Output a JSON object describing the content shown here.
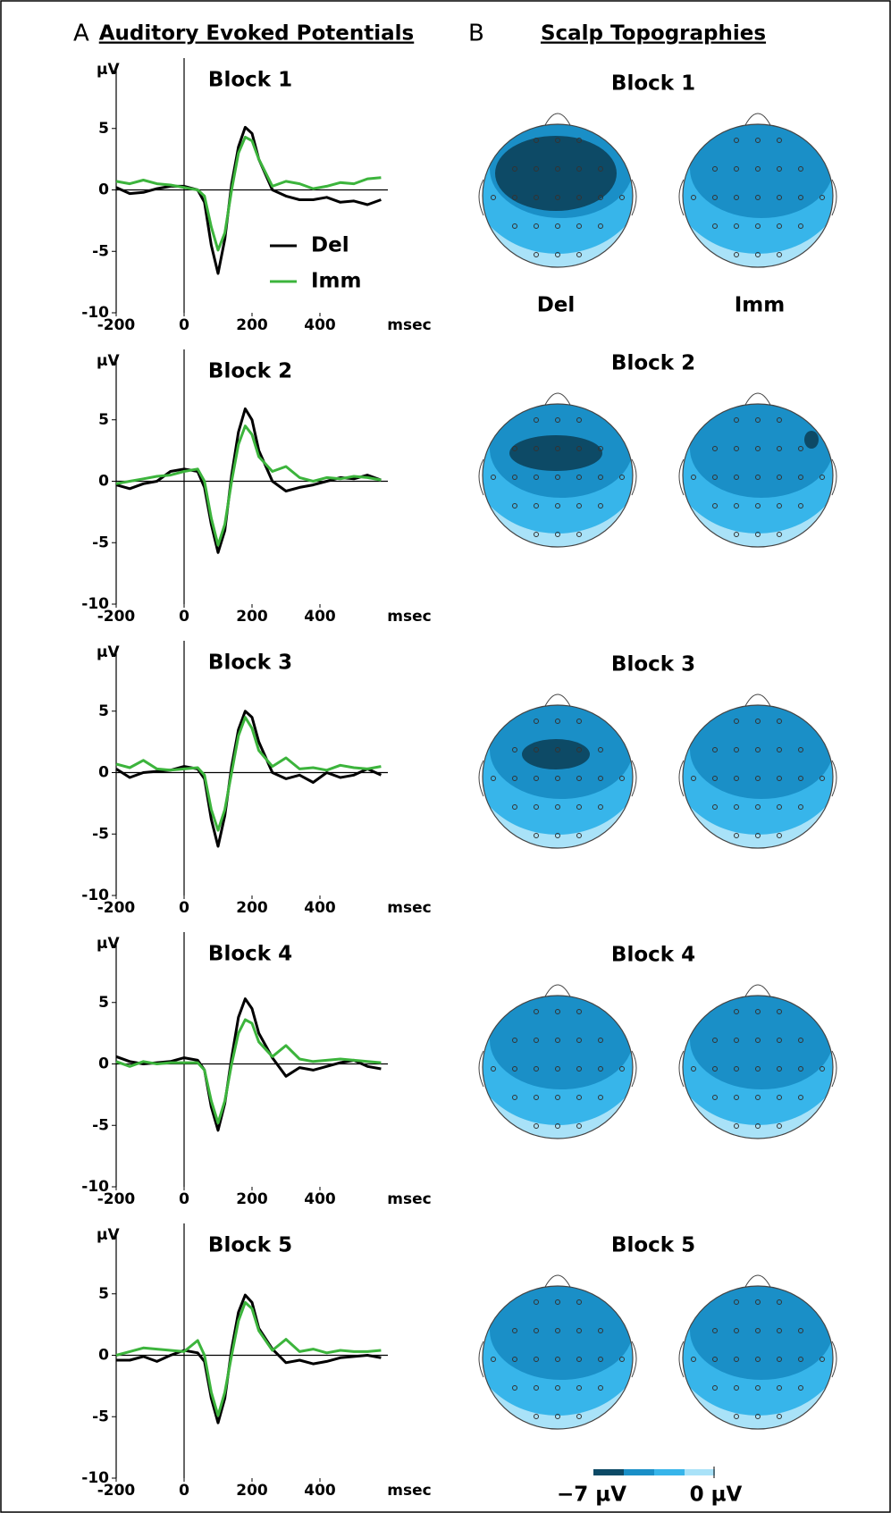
{
  "panels": {
    "a_letter": "A",
    "a_title": "Auditory Evoked Potentials",
    "b_letter": "B",
    "b_title": "Scalp Topographies"
  },
  "chart_data": [
    {
      "type": "line",
      "title": "Block 1",
      "y_label": "µV",
      "x_unit": "msec",
      "legend": true,
      "x": [
        -200,
        -160,
        -120,
        -80,
        -40,
        0,
        40,
        60,
        80,
        100,
        120,
        140,
        160,
        180,
        200,
        220,
        260,
        300,
        340,
        380,
        420,
        460,
        500,
        540,
        580
      ],
      "xlim": [
        -200,
        600
      ],
      "xticks": [
        -200,
        0,
        200,
        400
      ],
      "ylim": [
        -10,
        10
      ],
      "yticks": [
        -10,
        -5,
        0,
        5
      ],
      "series": [
        {
          "name": "Del",
          "color": "#000000",
          "values": [
            0.2,
            -0.3,
            -0.2,
            0.1,
            0.3,
            0.3,
            0,
            -1,
            -4.5,
            -6.8,
            -4,
            0.5,
            3.5,
            5.1,
            4.6,
            2.5,
            0,
            -0.5,
            -0.8,
            -0.8,
            -0.6,
            -1,
            -0.9,
            -1.2,
            -0.8
          ]
        },
        {
          "name": "Imm",
          "color": "#3cb43c",
          "values": [
            0.7,
            0.5,
            0.8,
            0.5,
            0.4,
            0.2,
            0,
            -0.5,
            -3,
            -4.9,
            -3.5,
            0,
            3,
            4.3,
            4,
            2.5,
            0.3,
            0.7,
            0.5,
            0.1,
            0.3,
            0.6,
            0.5,
            0.9,
            1.0
          ]
        }
      ]
    },
    {
      "type": "line",
      "title": "Block 2",
      "y_label": "µV",
      "x_unit": "msec",
      "legend": false,
      "x": [
        -200,
        -160,
        -120,
        -80,
        -40,
        0,
        40,
        60,
        80,
        100,
        120,
        140,
        160,
        180,
        200,
        220,
        260,
        300,
        340,
        380,
        420,
        460,
        500,
        540,
        580
      ],
      "xlim": [
        -200,
        600
      ],
      "xticks": [
        -200,
        0,
        200,
        400
      ],
      "ylim": [
        -10,
        10
      ],
      "yticks": [
        -10,
        -5,
        0,
        5
      ],
      "series": [
        {
          "name": "Del",
          "color": "#000000",
          "values": [
            -0.3,
            -0.6,
            -0.2,
            0,
            0.8,
            1,
            0.8,
            -0.5,
            -3.5,
            -5.8,
            -4,
            0.5,
            4,
            5.9,
            5,
            2.5,
            0,
            -0.8,
            -0.5,
            -0.3,
            0,
            0.3,
            0.2,
            0.5,
            0.1
          ]
        },
        {
          "name": "Imm",
          "color": "#3cb43c",
          "values": [
            -0.2,
            0,
            0.2,
            0.4,
            0.5,
            0.8,
            1,
            0,
            -3,
            -5.2,
            -3.5,
            0,
            3,
            4.5,
            3.8,
            2,
            0.8,
            1.2,
            0.3,
            0,
            0.3,
            0.2,
            0.4,
            0.3,
            0.1
          ]
        }
      ]
    },
    {
      "type": "line",
      "title": "Block 3",
      "y_label": "µV",
      "x_unit": "msec",
      "legend": false,
      "x": [
        -200,
        -160,
        -120,
        -80,
        -40,
        0,
        40,
        60,
        80,
        100,
        120,
        140,
        160,
        180,
        200,
        220,
        260,
        300,
        340,
        380,
        420,
        460,
        500,
        540,
        580
      ],
      "xlim": [
        -200,
        600
      ],
      "xticks": [
        -200,
        0,
        200,
        400
      ],
      "ylim": [
        -10,
        10
      ],
      "yticks": [
        -10,
        -5,
        0,
        5
      ],
      "series": [
        {
          "name": "Del",
          "color": "#000000",
          "values": [
            0.3,
            -0.4,
            0,
            0.1,
            0.2,
            0.5,
            0.3,
            -0.5,
            -3.8,
            -6,
            -3.5,
            0.5,
            3.5,
            5,
            4.5,
            2.5,
            0,
            -0.5,
            -0.2,
            -0.8,
            0,
            -0.4,
            -0.2,
            0.3,
            -0.2
          ]
        },
        {
          "name": "Imm",
          "color": "#3cb43c",
          "values": [
            0.7,
            0.4,
            1,
            0.3,
            0.2,
            0.3,
            0.4,
            -0.2,
            -3,
            -4.7,
            -3,
            0,
            3,
            4.5,
            3.6,
            1.8,
            0.5,
            1.2,
            0.3,
            0.4,
            0.2,
            0.6,
            0.4,
            0.3,
            0.5
          ]
        }
      ]
    },
    {
      "type": "line",
      "title": "Block 4",
      "y_label": "µV",
      "x_unit": "msec",
      "legend": false,
      "x": [
        -200,
        -160,
        -120,
        -80,
        -40,
        0,
        40,
        60,
        80,
        100,
        120,
        140,
        160,
        180,
        200,
        220,
        260,
        300,
        340,
        380,
        420,
        460,
        500,
        540,
        580
      ],
      "xlim": [
        -200,
        600
      ],
      "xticks": [
        -200,
        0,
        200,
        400
      ],
      "ylim": [
        -10,
        10
      ],
      "yticks": [
        -10,
        -5,
        0,
        5
      ],
      "series": [
        {
          "name": "Del",
          "color": "#000000",
          "values": [
            0.6,
            0.2,
            0,
            0.1,
            0.2,
            0.5,
            0.3,
            -0.5,
            -3.5,
            -5.4,
            -3.2,
            0.5,
            3.8,
            5.3,
            4.5,
            2.5,
            0.5,
            -1,
            -0.3,
            -0.5,
            -0.2,
            0.1,
            0.3,
            -0.2,
            -0.4
          ]
        },
        {
          "name": "Imm",
          "color": "#3cb43c",
          "values": [
            0.2,
            -0.2,
            0.2,
            0,
            0.1,
            0.1,
            0.1,
            -0.5,
            -3,
            -4.8,
            -3,
            0,
            2.5,
            3.6,
            3.3,
            1.8,
            0.6,
            1.5,
            0.4,
            0.2,
            0.3,
            0.4,
            0.3,
            0.2,
            0.1
          ]
        }
      ]
    },
    {
      "type": "line",
      "title": "Block 5",
      "y_label": "µV",
      "x_unit": "msec",
      "legend": false,
      "x": [
        -200,
        -160,
        -120,
        -80,
        -40,
        0,
        40,
        60,
        80,
        100,
        120,
        140,
        160,
        180,
        200,
        220,
        260,
        300,
        340,
        380,
        420,
        460,
        500,
        540,
        580
      ],
      "xlim": [
        -200,
        600
      ],
      "xticks": [
        -200,
        0,
        200,
        400
      ],
      "ylim": [
        -10,
        10
      ],
      "yticks": [
        -10,
        -5,
        0,
        5
      ],
      "series": [
        {
          "name": "Del",
          "color": "#000000",
          "values": [
            -0.4,
            -0.4,
            -0.1,
            -0.5,
            0,
            0.4,
            0.2,
            -0.5,
            -3.5,
            -5.5,
            -3.5,
            0.5,
            3.5,
            4.9,
            4.3,
            2.2,
            0.5,
            -0.6,
            -0.4,
            -0.7,
            -0.5,
            -0.2,
            -0.1,
            0,
            -0.2
          ]
        },
        {
          "name": "Imm",
          "color": "#3cb43c",
          "values": [
            0,
            0.3,
            0.6,
            0.5,
            0.4,
            0.3,
            1.2,
            0,
            -3,
            -4.9,
            -3,
            0,
            2.8,
            4.3,
            3.8,
            2,
            0.4,
            1.3,
            0.3,
            0.5,
            0.2,
            0.4,
            0.3,
            0.3,
            0.4
          ]
        }
      ]
    }
  ],
  "topographies": {
    "blocks": [
      "Block 1",
      "Block 2",
      "Block 3",
      "Block 4",
      "Block 5"
    ],
    "conditions": [
      "Del",
      "Imm"
    ],
    "colorbar": {
      "min_label": "−7 µV",
      "max_label": "0 µV"
    }
  }
}
